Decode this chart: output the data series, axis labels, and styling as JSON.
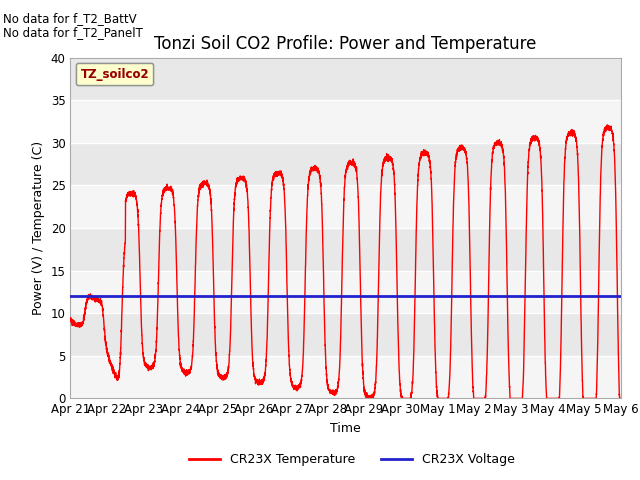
{
  "title": "Tonzi Soil CO2 Profile: Power and Temperature",
  "ylabel": "Power (V) / Temperature (C)",
  "xlabel": "Time",
  "ylim": [
    0,
    40
  ],
  "yticks": [
    0,
    5,
    10,
    15,
    20,
    25,
    30,
    35,
    40
  ],
  "x_tick_labels": [
    "Apr 21",
    "Apr 22",
    "Apr 23",
    "Apr 24",
    "Apr 25",
    "Apr 26",
    "Apr 27",
    "Apr 28",
    "Apr 29",
    "Apr 30",
    "May 1",
    "May 2",
    "May 3",
    "May 4",
    "May 5",
    "May 6"
  ],
  "no_data_text1": "No data for f_T2_BattV",
  "no_data_text2": "No data for f_T2_PanelT",
  "legend_box_label": "TZ_soilco2",
  "temp_color": "#ff0000",
  "voltage_color": "#2222cc",
  "background_color": "#ebebeb",
  "legend_temp": "CR23X Temperature",
  "legend_voltage": "CR23X Voltage",
  "voltage_value": 12.0,
  "title_fontsize": 12,
  "axis_fontsize": 9,
  "tick_fontsize": 8.5
}
